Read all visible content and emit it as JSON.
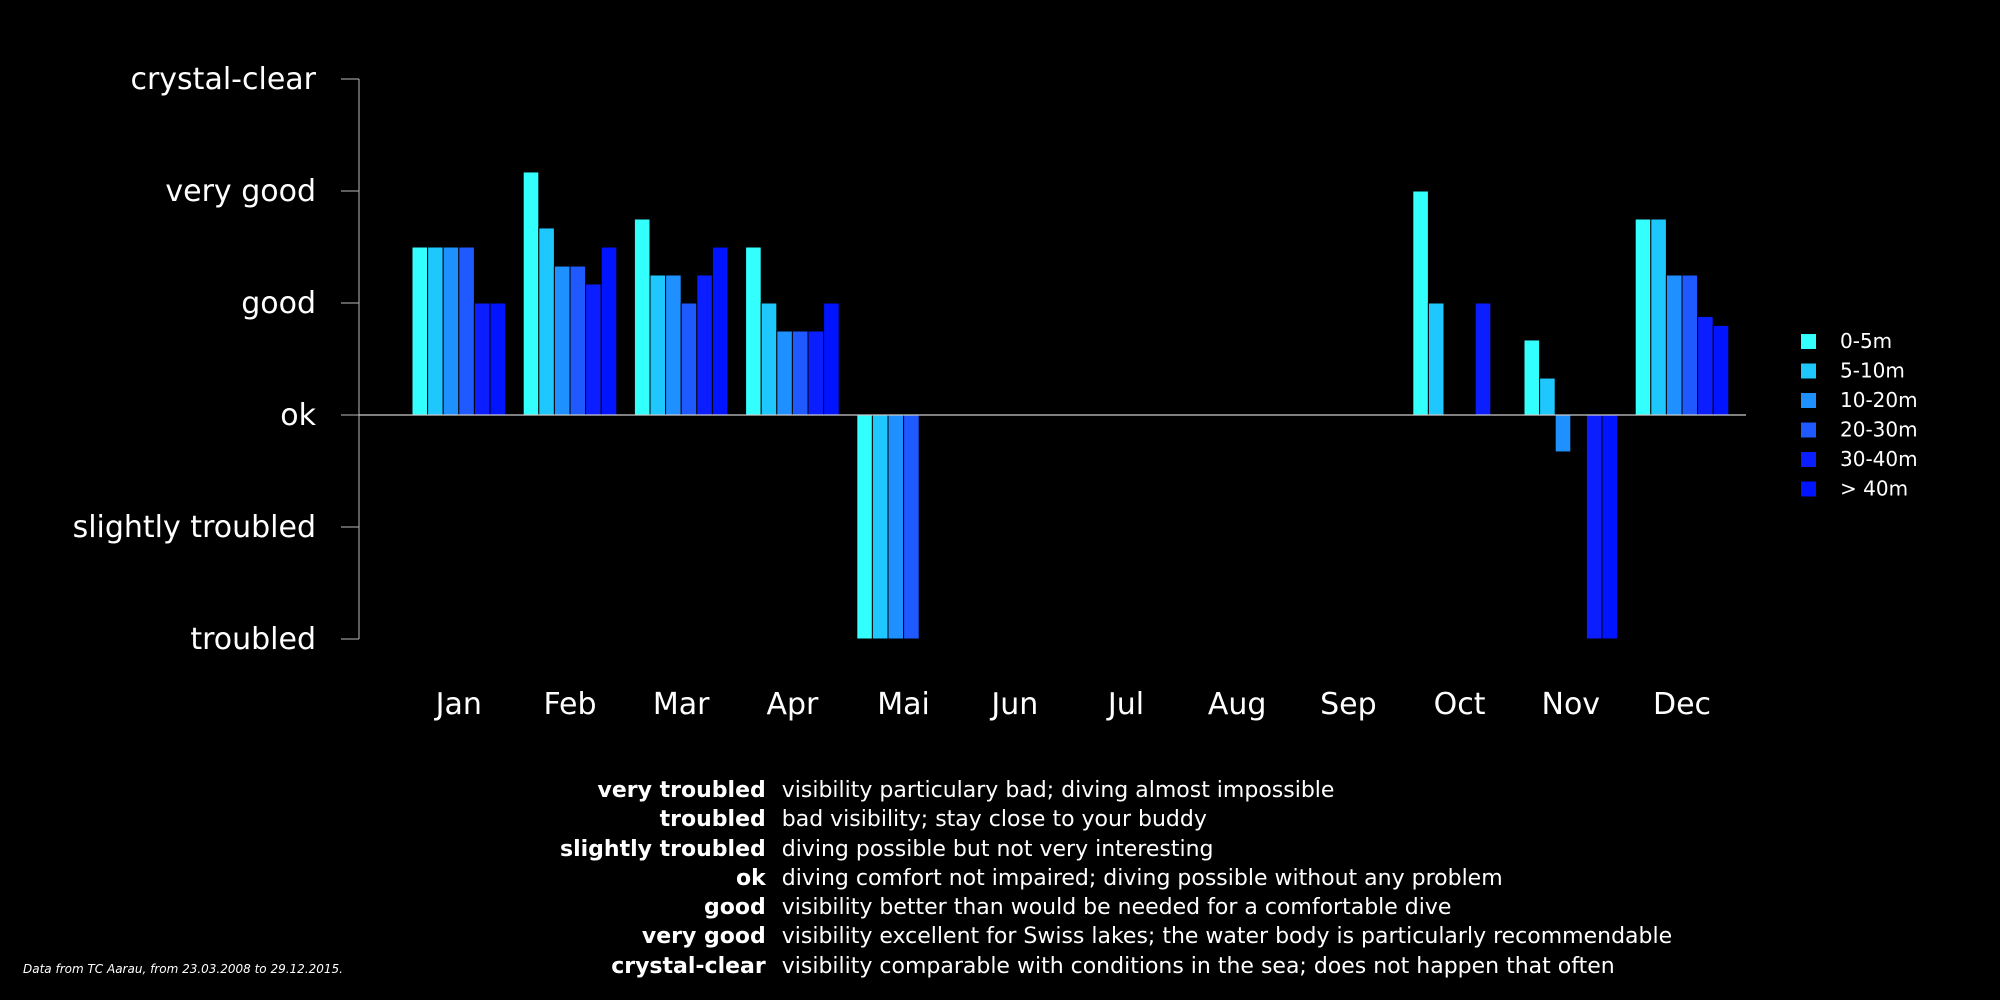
{
  "chart_data": {
    "type": "bar",
    "categories": [
      "Jan",
      "Feb",
      "Mar",
      "Apr",
      "Mai",
      "Jun",
      "Jul",
      "Aug",
      "Sep",
      "Oct",
      "Nov",
      "Dec"
    ],
    "y_scale": [
      "troubled",
      "slightly troubled",
      "ok",
      "good",
      "very good",
      "crystal-clear"
    ],
    "y_tick_values": [
      -2,
      -1,
      0,
      1,
      2,
      3
    ],
    "ylim": [
      -2,
      3
    ],
    "baseline": 0,
    "series": [
      {
        "name": "0-5m",
        "color": "#33ffff",
        "values": [
          1.5,
          2.17,
          1.75,
          1.5,
          -2,
          null,
          null,
          null,
          null,
          2.0,
          0.67,
          1.75
        ]
      },
      {
        "name": "5-10m",
        "color": "#1ec8ff",
        "values": [
          1.5,
          1.67,
          1.25,
          1.0,
          -2,
          null,
          null,
          null,
          null,
          1.0,
          0.33,
          1.75
        ]
      },
      {
        "name": "10-20m",
        "color": "#1e90ff",
        "values": [
          1.5,
          1.33,
          1.25,
          0.75,
          -2,
          null,
          null,
          null,
          null,
          null,
          -0.33,
          1.25
        ]
      },
      {
        "name": "20-30m",
        "color": "#1e5aff",
        "values": [
          1.5,
          1.33,
          1.0,
          0.75,
          -2,
          null,
          null,
          null,
          null,
          null,
          null,
          1.25
        ]
      },
      {
        "name": "30-40m",
        "color": "#0a1eff",
        "values": [
          1.0,
          1.17,
          1.25,
          0.75,
          null,
          null,
          null,
          null,
          null,
          1.0,
          -2,
          0.88
        ]
      },
      {
        "name": "> 40m",
        "color": "#0014ff",
        "values": [
          1.0,
          1.5,
          1.5,
          1.0,
          null,
          null,
          null,
          null,
          null,
          null,
          -2,
          0.8
        ]
      }
    ],
    "legend_position": "right",
    "grid": false
  },
  "definitions": [
    {
      "term": "very troubled",
      "description": "visibility particulary bad; diving almost impossible"
    },
    {
      "term": "troubled",
      "description": "bad visibility; stay close to your buddy"
    },
    {
      "term": "slightly troubled",
      "description": "diving possible but not very interesting"
    },
    {
      "term": "ok",
      "description": "diving comfort not impaired; diving possible without any problem"
    },
    {
      "term": "good",
      "description": "visibility better than would be needed for a comfortable dive"
    },
    {
      "term": "very good",
      "description": "visibility excellent for Swiss lakes; the water body is particularly recommendable"
    },
    {
      "term": "crystal-clear",
      "description": "visibility comparable with conditions in the sea; does not happen that often"
    }
  ],
  "source_note": "Data from TC Aarau, from 23.03.2008 to 29.12.2015."
}
